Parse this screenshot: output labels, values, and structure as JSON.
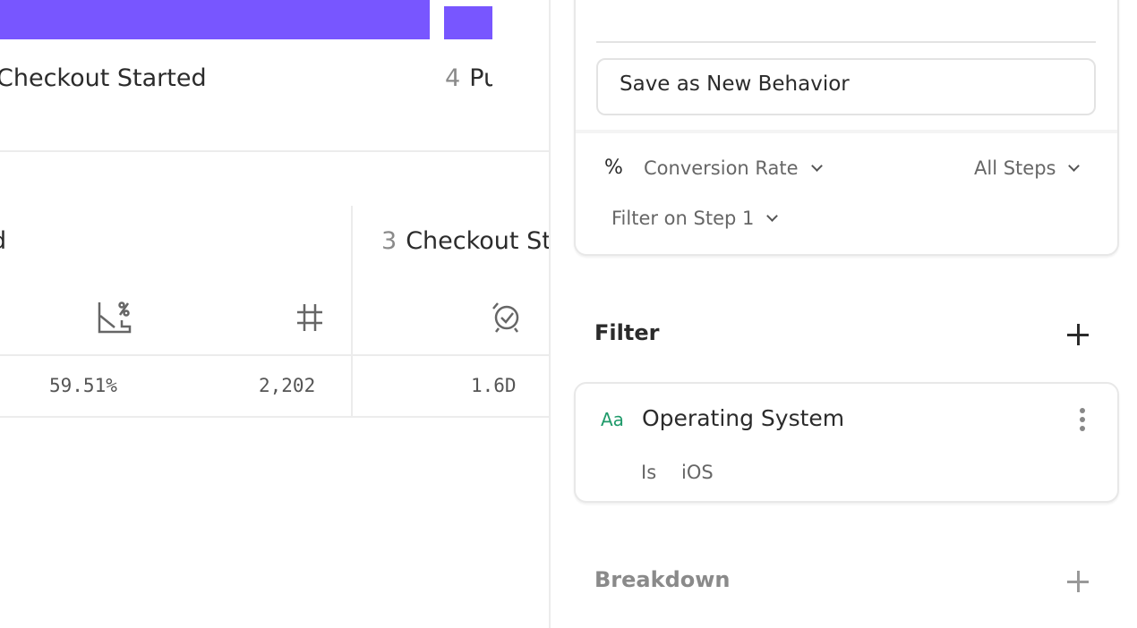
{
  "chart": {
    "bar_color": "#7856ff",
    "steps": [
      {
        "number": "",
        "label": "Checkout Started"
      },
      {
        "number": "4",
        "label": "Purchase"
      }
    ]
  },
  "table": {
    "header_left": "d",
    "header_step": {
      "number": "3",
      "label": "Checkout Started"
    },
    "icons": [
      "conversion-percent-icon",
      "hash-icon",
      "time-to-convert-icon"
    ],
    "values": [
      "59.51%",
      "2,202",
      "1.6D"
    ]
  },
  "panel": {
    "save_button": "Save as New Behavior",
    "percent_symbol": "%",
    "metric": "Conversion Rate",
    "steps_select": "All Steps",
    "filter_step": "Filter on Step 1",
    "filter_section": "Filter",
    "filter_item": {
      "type_icon": "Aa",
      "type_color": "#1f9a6a",
      "property": "Operating System",
      "operator": "Is",
      "value": "iOS"
    },
    "breakdown_section": "Breakdown"
  }
}
